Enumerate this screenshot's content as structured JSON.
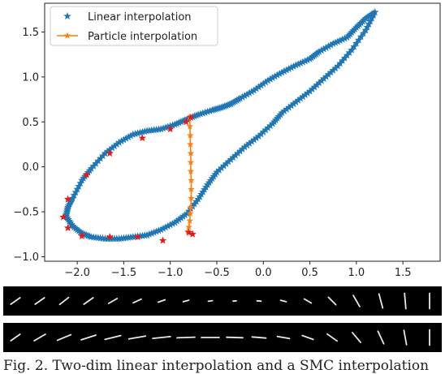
{
  "chart_data": {
    "type": "scatter",
    "title": "",
    "xlabel": "",
    "ylabel": "",
    "xlim": [
      -2.35,
      1.9
    ],
    "ylim": [
      -1.05,
      1.82
    ],
    "x_ticks": [
      "−2.0",
      "−1.5",
      "−1.0",
      "−0.5",
      "0.0",
      "0.5",
      "1.0",
      "1.5"
    ],
    "x_tick_values": [
      -2.0,
      -1.5,
      -1.0,
      -0.5,
      0.0,
      0.5,
      1.0,
      1.5
    ],
    "y_ticks": [
      "1.5",
      "1.0",
      "0.5",
      "0.0",
      "−0.5",
      "−1.0"
    ],
    "y_tick_values": [
      1.5,
      1.0,
      0.5,
      0.0,
      -0.5,
      -1.0
    ],
    "legend_position": "top-left",
    "colors": {
      "linear": "#1f77b4",
      "particle": "#ff7f0e",
      "markers": "#e41a1c"
    },
    "series": [
      {
        "name": "Linear interpolation",
        "style": "star-markers",
        "x": [
          -2.05,
          -1.95,
          -1.85,
          -1.7,
          -1.55,
          -1.4,
          -1.25,
          -1.1,
          -0.95,
          -0.82,
          -0.7,
          -0.55,
          -0.45,
          -0.35,
          -0.25,
          -0.1,
          0.05,
          0.2,
          0.35,
          0.5,
          0.6,
          0.75,
          0.9,
          1.0,
          1.1,
          1.2,
          1.1,
          0.95,
          0.8,
          0.65,
          0.5,
          0.35,
          0.2,
          0.1,
          -0.05,
          -0.2,
          -0.35,
          -0.5,
          -0.6,
          -0.7,
          -0.82,
          -0.95,
          -1.1,
          -1.25,
          -1.4,
          -1.55,
          -1.7,
          -1.85,
          -1.95,
          -2.05,
          -2.12,
          -2.1,
          -2.05
        ],
        "y": [
          -0.35,
          -0.15,
          -0.02,
          0.15,
          0.27,
          0.36,
          0.4,
          0.42,
          0.47,
          0.53,
          0.58,
          0.63,
          0.66,
          0.7,
          0.76,
          0.85,
          0.96,
          1.05,
          1.13,
          1.2,
          1.28,
          1.37,
          1.44,
          1.55,
          1.65,
          1.72,
          1.52,
          1.3,
          1.12,
          0.98,
          0.84,
          0.72,
          0.6,
          0.48,
          0.34,
          0.22,
          0.08,
          -0.06,
          -0.2,
          -0.36,
          -0.52,
          -0.62,
          -0.7,
          -0.76,
          -0.78,
          -0.8,
          -0.8,
          -0.78,
          -0.74,
          -0.66,
          -0.55,
          -0.45,
          -0.35
        ]
      },
      {
        "name": "Particle interpolation",
        "style": "line-stars",
        "x": [
          -0.79,
          -0.79,
          -0.785,
          -0.785,
          -0.78,
          -0.78,
          -0.78,
          -0.775,
          -0.775,
          -0.775,
          -0.78,
          -0.785,
          -0.79,
          -0.8,
          -0.81
        ],
        "y": [
          0.55,
          0.45,
          0.35,
          0.25,
          0.15,
          0.05,
          -0.05,
          -0.15,
          -0.25,
          -0.35,
          -0.45,
          -0.52,
          -0.6,
          -0.67,
          -0.72
        ]
      },
      {
        "name": "",
        "style": "red-stars",
        "x": [
          -0.78,
          -0.83,
          -1.0,
          -1.3,
          -1.65,
          -1.9,
          -2.1,
          -2.15,
          -2.1,
          -1.95,
          -1.65,
          -1.35,
          -1.08,
          -0.8,
          -0.76
        ],
        "y": [
          0.55,
          0.5,
          0.42,
          0.32,
          0.15,
          -0.09,
          -0.36,
          -0.56,
          -0.68,
          -0.77,
          -0.78,
          -0.78,
          -0.82,
          -0.73,
          -0.75
        ]
      }
    ]
  },
  "strips": {
    "row1_angles": [
      -35,
      -35,
      -38,
      -35,
      -30,
      -25,
      -20,
      -15,
      -10,
      -5,
      5,
      15,
      30,
      45,
      60,
      75,
      85,
      90
    ],
    "row1_lengths": [
      14,
      14,
      14,
      14,
      12,
      11,
      9,
      7,
      5,
      4,
      5,
      7,
      10,
      13,
      16,
      18,
      19,
      19
    ],
    "row2_angles": [
      -35,
      -30,
      -22,
      -18,
      -14,
      -10,
      -6,
      -2,
      0,
      2,
      5,
      10,
      20,
      35,
      50,
      65,
      80,
      90
    ],
    "row2_lengths": [
      14,
      16,
      18,
      19,
      20,
      21,
      22,
      22,
      22,
      20,
      17,
      15,
      14,
      15,
      16,
      17,
      18,
      19
    ]
  },
  "caption": "Fig. 2. Two-dim linear interpolation and a SMC interpolation"
}
